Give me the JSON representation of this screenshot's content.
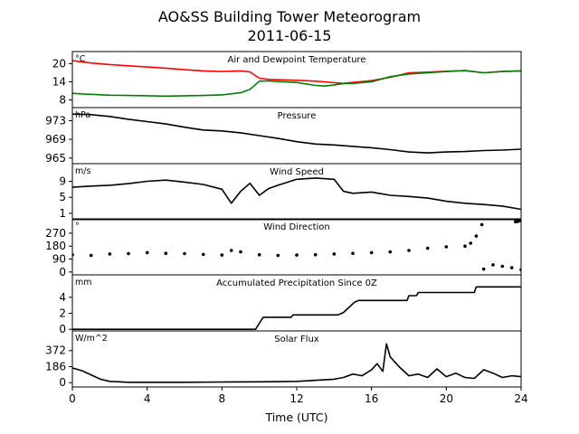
{
  "title": "AO&SS Building Tower Meteorogram",
  "date": "2011-06-15",
  "xlabel": "Time (UTC)",
  "xlim": [
    0,
    24
  ],
  "xticks": [
    0,
    4,
    8,
    12,
    16,
    20,
    24
  ],
  "colors": {
    "temperature": "#ff0000",
    "dewpoint": "#008000",
    "line": "#000000"
  },
  "chart_data": [
    {
      "type": "line",
      "title": "Air and Dewpoint Temperature",
      "unit": "°C",
      "ylim": [
        5.5,
        24
      ],
      "yticks": [
        8,
        14,
        20
      ],
      "series": [
        {
          "name": "",
          "color": "#ff0000",
          "x": [
            0,
            0.5,
            1,
            2,
            3,
            4,
            5,
            6,
            7,
            8,
            9,
            9.5,
            10,
            10.5,
            11,
            12,
            13,
            13.5,
            14,
            14.5,
            15,
            16,
            17,
            18,
            19,
            20,
            21,
            22,
            23,
            24
          ],
          "y": [
            21.0,
            20.6,
            20.2,
            19.7,
            19.3,
            18.9,
            18.5,
            18.0,
            17.6,
            17.4,
            17.6,
            17.3,
            15.2,
            14.8,
            14.7,
            14.5,
            14.2,
            14.0,
            13.7,
            13.5,
            13.8,
            14.4,
            15.5,
            17.0,
            17.2,
            17.5,
            17.7,
            17.0,
            17.4,
            17.6
          ]
        },
        {
          "name": "",
          "color": "#008000",
          "x": [
            0,
            0.5,
            1,
            2,
            3,
            4,
            5,
            6,
            7,
            8,
            9,
            9.5,
            10,
            10.5,
            11,
            12,
            13,
            13.5,
            14,
            14.5,
            15,
            16,
            17,
            18,
            19,
            20,
            21,
            22,
            23,
            24
          ],
          "y": [
            10.2,
            10.0,
            9.9,
            9.6,
            9.5,
            9.4,
            9.3,
            9.4,
            9.5,
            9.7,
            10.4,
            11.5,
            14.2,
            14.3,
            14.1,
            13.8,
            12.8,
            12.6,
            13.0,
            13.4,
            13.5,
            14.0,
            15.7,
            16.6,
            17.0,
            17.4,
            17.7,
            17.0,
            17.4,
            17.6
          ]
        }
      ]
    },
    {
      "type": "line",
      "title": "Pressure",
      "unit": "hPa",
      "ylim": [
        963.8,
        975.8
      ],
      "yticks": [
        965,
        969,
        973
      ],
      "series": [
        {
          "name": "",
          "color": "#000000",
          "x": [
            0,
            1,
            2,
            3,
            4,
            5,
            6,
            7,
            8,
            9,
            10,
            11,
            12,
            13,
            14,
            15,
            16,
            17,
            18,
            19,
            20,
            21,
            22,
            23,
            24
          ],
          "y": [
            974.4,
            974.3,
            973.9,
            973.3,
            972.8,
            972.3,
            971.6,
            971.0,
            970.8,
            970.4,
            969.8,
            969.2,
            968.5,
            968.0,
            967.8,
            967.5,
            967.2,
            966.8,
            966.3,
            966.1,
            966.3,
            966.4,
            966.6,
            966.7,
            966.9
          ]
        }
      ]
    },
    {
      "type": "line",
      "title": "Wind Speed",
      "unit": "m/s",
      "ylim": [
        -0.6,
        13.4
      ],
      "yticks": [
        1,
        5,
        9
      ],
      "series": [
        {
          "name": "",
          "color": "#000000",
          "x": [
            0,
            1,
            2,
            3,
            4,
            5,
            6,
            7,
            8,
            8.5,
            9,
            9.5,
            10,
            10.5,
            11,
            12,
            13,
            14,
            14.5,
            15,
            16,
            17,
            18,
            19,
            20,
            21,
            22,
            23,
            24
          ],
          "y": [
            7.5,
            7.8,
            8.0,
            8.4,
            9.0,
            9.3,
            8.8,
            8.2,
            7.0,
            3.5,
            6.5,
            8.5,
            5.5,
            7.2,
            8.0,
            9.5,
            9.8,
            9.5,
            6.5,
            6.0,
            6.3,
            5.5,
            5.2,
            4.8,
            4.0,
            3.5,
            3.2,
            2.8,
            2.0
          ]
        }
      ]
    },
    {
      "type": "scatter",
      "title": "Wind Direction",
      "unit": "°",
      "ylim": [
        -20,
        370
      ],
      "yticks": [
        0,
        90,
        180,
        270
      ],
      "series": [
        {
          "name": "",
          "color": "#000000",
          "x": [
            0,
            1,
            2,
            3,
            4,
            5,
            6,
            7,
            8,
            8.5,
            9,
            10,
            11,
            12,
            13,
            14,
            15,
            16,
            17,
            18,
            19,
            20,
            21,
            21.3,
            21.6,
            21.9,
            22,
            22.5,
            23,
            23.5,
            24
          ],
          "y": [
            120,
            115,
            125,
            128,
            135,
            130,
            128,
            122,
            118,
            150,
            140,
            120,
            115,
            118,
            120,
            125,
            130,
            135,
            140,
            150,
            165,
            175,
            180,
            200,
            250,
            330,
            20,
            50,
            40,
            30,
            15
          ]
        },
        {
          "name": "",
          "color": "#000000",
          "x": [
            23.7,
            23.8,
            23.9
          ],
          "y": [
            350,
            352,
            355
          ]
        }
      ]
    },
    {
      "type": "line",
      "title": "Accumulated Precipitation Since 0Z",
      "unit": "mm",
      "ylim": [
        -0.2,
        6.8
      ],
      "yticks": [
        0,
        2,
        4
      ],
      "series": [
        {
          "name": "",
          "color": "#000000",
          "x": [
            0,
            9.8,
            10.2,
            11.7,
            11.8,
            14.2,
            14.5,
            15.1,
            15.3,
            17.9,
            18.0,
            18.4,
            18.5,
            21.5,
            21.6,
            24
          ],
          "y": [
            0,
            0,
            1.5,
            1.5,
            1.8,
            1.8,
            2.1,
            3.4,
            3.6,
            3.6,
            4.2,
            4.2,
            4.6,
            4.6,
            5.3,
            5.3
          ]
        }
      ]
    },
    {
      "type": "line",
      "title": "Solar Flux",
      "unit": "W/m^2",
      "ylim": [
        -50,
        600
      ],
      "yticks": [
        0,
        186,
        372
      ],
      "series": [
        {
          "name": "",
          "color": "#000000",
          "x": [
            0,
            0.5,
            1,
            1.5,
            2,
            3,
            4,
            6,
            8,
            10,
            12,
            14,
            14.5,
            15,
            15.5,
            16,
            16.3,
            16.6,
            16.8,
            17,
            17.2,
            17.5,
            18,
            18.5,
            19,
            19.5,
            20,
            20.5,
            21,
            21.5,
            22,
            22.5,
            23,
            23.5,
            24
          ],
          "y": [
            170,
            140,
            90,
            40,
            15,
            5,
            5,
            5,
            8,
            10,
            15,
            40,
            60,
            100,
            80,
            150,
            220,
            130,
            450,
            300,
            250,
            180,
            80,
            100,
            60,
            160,
            70,
            110,
            60,
            50,
            150,
            110,
            60,
            80,
            70
          ]
        }
      ]
    }
  ]
}
